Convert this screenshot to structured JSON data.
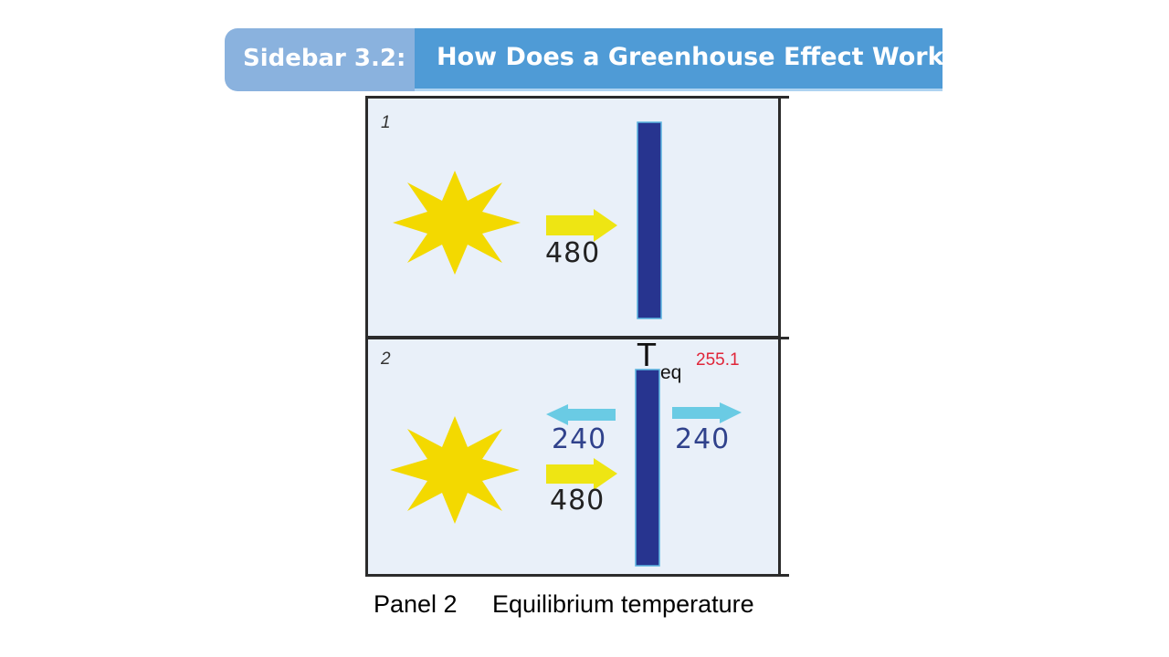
{
  "header": {
    "label": "Sidebar 3.2:",
    "title": "How Does a Greenhouse Effect Work?",
    "label_color": "#8ab2de",
    "title_color": "#4f9bd6"
  },
  "panels": [
    {
      "number": "1",
      "incoming": "480"
    },
    {
      "number": "2",
      "incoming": "480",
      "emitted_left": "240",
      "emitted_right": "240",
      "temperature_symbol": "T",
      "temperature_subscript": "eq",
      "temperature_value": "255.1"
    }
  ],
  "colors": {
    "sun": "#f3d900",
    "incoming_arrow": "#eee513",
    "emitted_arrow": "#6acbe4",
    "slab": "#27348f",
    "slab_outline": "#5ab4e0",
    "panel_background": "#e9f0f9",
    "temperature_value": "#e0263a"
  },
  "icons": [
    "sun-icon",
    "arrow-right-icon",
    "arrow-left-icon"
  ],
  "caption": {
    "panel": "Panel 2",
    "description": "Equilibrium temperature"
  }
}
